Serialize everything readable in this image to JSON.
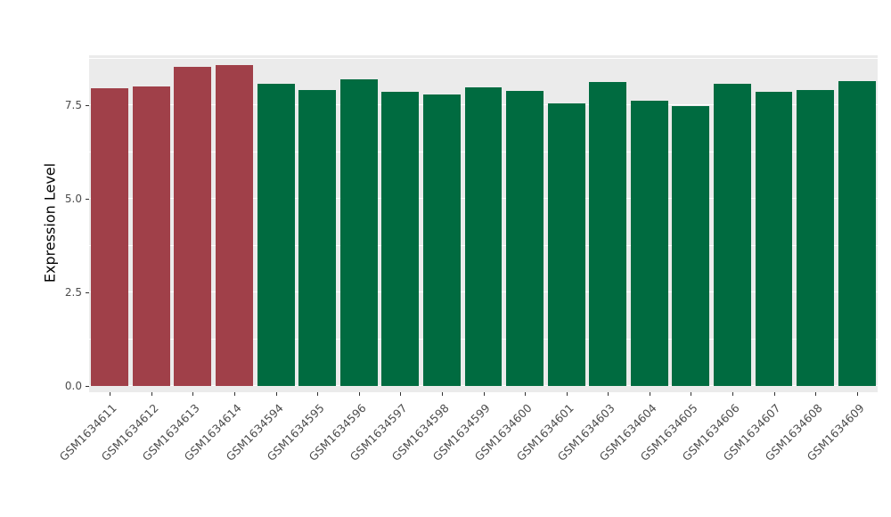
{
  "chart_data": {
    "type": "bar",
    "title": "",
    "xlabel": "",
    "ylabel": "Expression Level",
    "categories": [
      "GSM1634611",
      "GSM1634612",
      "GSM1634613",
      "GSM1634614",
      "GSM1634594",
      "GSM1634595",
      "GSM1634596",
      "GSM1634597",
      "GSM1634598",
      "GSM1634599",
      "GSM1634600",
      "GSM1634601",
      "GSM1634603",
      "GSM1634604",
      "GSM1634605",
      "GSM1634606",
      "GSM1634607",
      "GSM1634608",
      "GSM1634609"
    ],
    "values": [
      7.95,
      8.0,
      8.52,
      8.57,
      8.07,
      7.9,
      8.19,
      7.86,
      7.79,
      7.98,
      7.88,
      7.55,
      8.12,
      7.62,
      7.48,
      8.07,
      7.86,
      7.9,
      8.14
    ],
    "bar_groups": [
      "red",
      "red",
      "red",
      "red",
      "green",
      "green",
      "green",
      "green",
      "green",
      "green",
      "green",
      "green",
      "green",
      "green",
      "green",
      "green",
      "green",
      "green",
      "green"
    ],
    "palette": {
      "red": "#A04049",
      "green": "#006B40"
    },
    "yticks": [
      "0.0",
      "2.5",
      "5.0",
      "7.5"
    ],
    "ylim": [
      0,
      8.83
    ],
    "grid": true,
    "legend": "none",
    "panel_background": "#EBEBEB"
  }
}
